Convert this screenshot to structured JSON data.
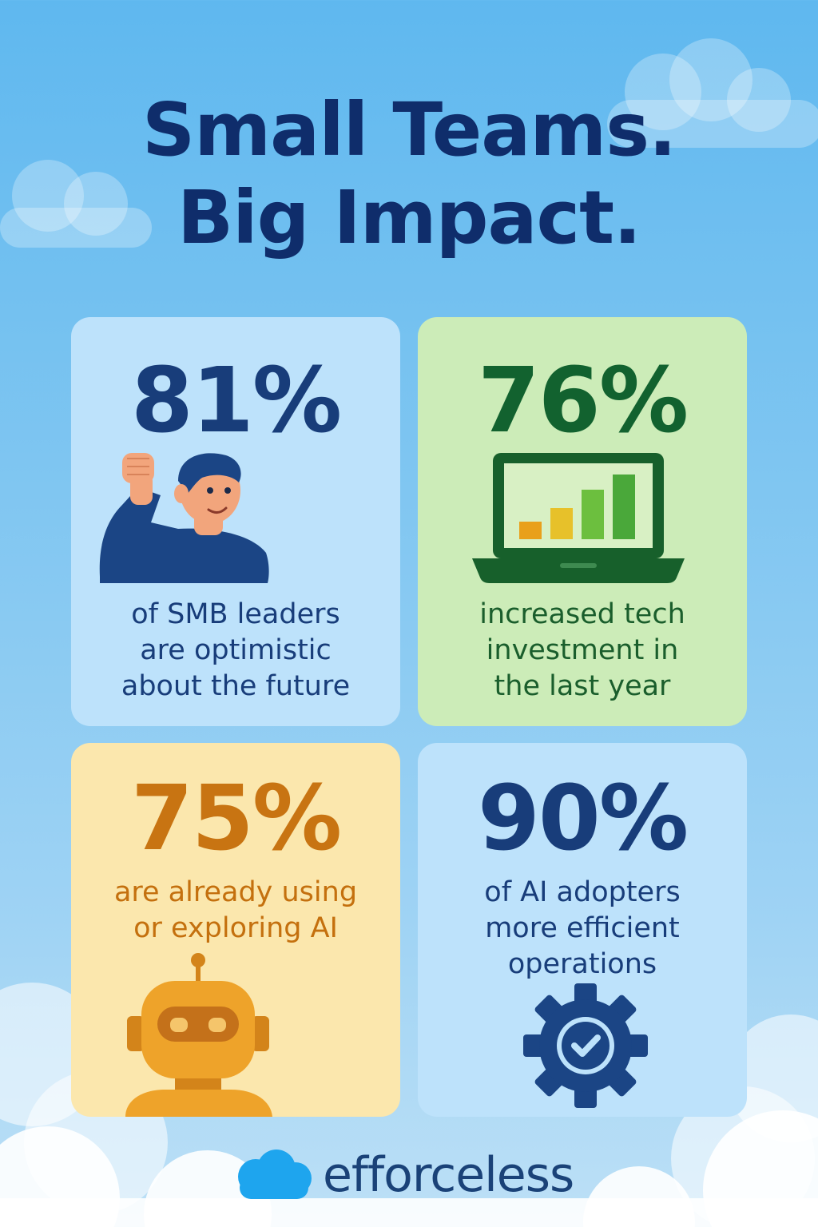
{
  "title": {
    "line1": "Small Teams.",
    "line2": "Big Impact."
  },
  "stats": [
    {
      "value": "81%",
      "lines": [
        "of SMB leaders",
        "are optimistic",
        "about the future"
      ],
      "icon": "person-raised-fist-icon"
    },
    {
      "value": "76%",
      "lines": [
        "increased tech",
        "investment in",
        "the last year"
      ],
      "icon": "laptop-bar-chart-icon"
    },
    {
      "value": "75%",
      "lines": [
        "are already using",
        "or exploring AI"
      ],
      "icon": "robot-icon"
    },
    {
      "value": "90%",
      "lines": [
        "of AI adopters",
        "more efficient",
        "operations"
      ],
      "icon": "gear-check-icon"
    }
  ],
  "brand": {
    "name": "efforceless",
    "icon": "cloud-logo-icon"
  },
  "colors": {
    "navy": "#183d7a",
    "green": "#12622f",
    "orange": "#c87412",
    "blue_card": "#bde2fb",
    "green_card": "#ccecb8",
    "yellow_card": "#fbe7ad",
    "logo_blue": "#1ea5ee"
  }
}
